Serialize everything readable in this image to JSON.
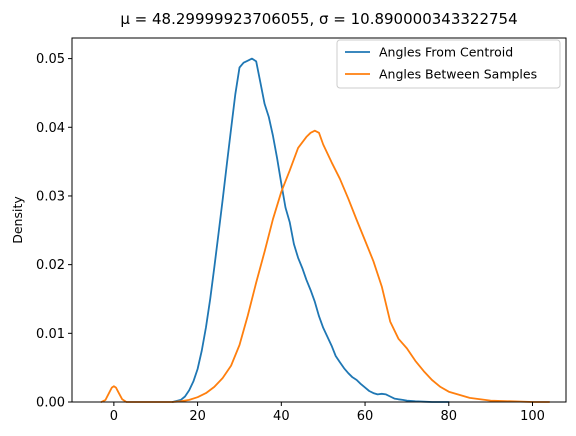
{
  "chart_data": {
    "type": "line",
    "title": "μ = 48.29999923706055, σ = 10.890000343322754",
    "xlabel": "",
    "ylabel": "Density",
    "xlim": [
      -10,
      108
    ],
    "ylim": [
      0,
      0.053
    ],
    "xticks": [
      0,
      20,
      40,
      60,
      80,
      100
    ],
    "xtick_labels": [
      "0",
      "20",
      "40",
      "60",
      "80",
      "100"
    ],
    "yticks": [
      0.0,
      0.01,
      0.02,
      0.03,
      0.04,
      0.05
    ],
    "ytick_labels": [
      "0.00",
      "0.01",
      "0.02",
      "0.03",
      "0.04",
      "0.05"
    ],
    "grid": false,
    "legend_position": "upper right",
    "series": [
      {
        "name": "Angles From Centroid",
        "color": "#1f77b4",
        "x": [
          14,
          16,
          17,
          18,
          19,
          20,
          21,
          22,
          23,
          24,
          25,
          26,
          27,
          28,
          29,
          30,
          31,
          32,
          33,
          34,
          35,
          36,
          37,
          38,
          39,
          40,
          41,
          42,
          43,
          44,
          45,
          46,
          47,
          48,
          49,
          50,
          51,
          52,
          53,
          54,
          55,
          56,
          57,
          58,
          59,
          60,
          61,
          62,
          63,
          64,
          65,
          66,
          67,
          68,
          69,
          70,
          72,
          74,
          76,
          78,
          80
        ],
        "y": [
          0.0,
          0.0003,
          0.0008,
          0.0017,
          0.003,
          0.0048,
          0.0075,
          0.0109,
          0.015,
          0.0196,
          0.0245,
          0.0295,
          0.0347,
          0.0398,
          0.0448,
          0.0487,
          0.0494,
          0.0497,
          0.05,
          0.0496,
          0.0465,
          0.0434,
          0.0415,
          0.0388,
          0.0355,
          0.0318,
          0.0283,
          0.0262,
          0.023,
          0.021,
          0.0195,
          0.0178,
          0.0163,
          0.0146,
          0.0125,
          0.0108,
          0.0095,
          0.0082,
          0.0067,
          0.0058,
          0.0049,
          0.0042,
          0.0036,
          0.0032,
          0.0026,
          0.0021,
          0.0016,
          0.0013,
          0.0011,
          0.0012,
          0.0011,
          0.0008,
          0.0005,
          0.0004,
          0.0003,
          0.0002,
          0.0001,
          5e-05,
          0.0,
          0.0,
          0.0
        ]
      },
      {
        "name": "Angles Between Samples",
        "color": "#ff7f0e",
        "x": [
          -3,
          -2,
          -1,
          -0.5,
          0,
          0.5,
          1,
          2,
          3,
          5,
          10,
          14,
          16,
          18,
          20,
          22,
          24,
          26,
          28,
          30,
          32,
          34,
          36,
          38,
          40,
          42,
          44,
          46,
          47,
          48,
          49,
          50,
          52,
          54,
          56,
          58,
          60,
          62,
          64,
          66,
          68,
          70,
          72,
          74,
          76,
          78,
          80,
          85,
          90,
          95,
          100,
          104
        ],
        "y": [
          0.0,
          0.0003,
          0.0015,
          0.0021,
          0.0023,
          0.0021,
          0.0015,
          0.0004,
          0.0,
          0.0,
          0.0,
          0.0,
          0.0001,
          0.0003,
          0.0007,
          0.0013,
          0.0022,
          0.0035,
          0.0053,
          0.0083,
          0.0126,
          0.0174,
          0.0219,
          0.0266,
          0.0306,
          0.0337,
          0.037,
          0.0386,
          0.0392,
          0.0395,
          0.0392,
          0.0375,
          0.0349,
          0.0325,
          0.0296,
          0.0265,
          0.0235,
          0.0205,
          0.0168,
          0.0117,
          0.0092,
          0.0078,
          0.006,
          0.0045,
          0.0032,
          0.0022,
          0.0015,
          0.0006,
          0.0002,
          0.0001,
          0.0,
          0.0
        ]
      }
    ]
  }
}
